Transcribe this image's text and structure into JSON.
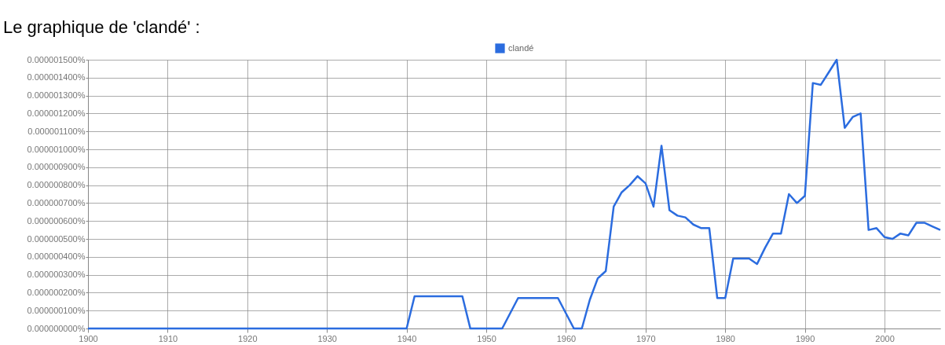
{
  "chart_data": {
    "type": "line",
    "title": "Le graphique de 'clandé' :",
    "x": [
      1900,
      1940,
      1941,
      1947,
      1948,
      1952,
      1954,
      1959,
      1961,
      1962,
      1963,
      1964,
      1965,
      1966,
      1967,
      1968,
      1969,
      1970,
      1971,
      1972,
      1973,
      1974,
      1975,
      1976,
      1977,
      1978,
      1979,
      1980,
      1981,
      1982,
      1983,
      1984,
      1985,
      1986,
      1987,
      1988,
      1989,
      1990,
      1991,
      1992,
      1993,
      1994,
      1995,
      1996,
      1997,
      1998,
      1999,
      2000,
      2001,
      2002,
      2003,
      2004,
      2005,
      2006,
      2007
    ],
    "series": [
      {
        "name": "clandé",
        "color": "#2b6cdf",
        "values": [
          0,
          0,
          1.8e-07,
          1.8e-07,
          0,
          0,
          1.7e-07,
          1.7e-07,
          0,
          0,
          1.6e-07,
          2.8e-07,
          3.2e-07,
          6.8e-07,
          7.6e-07,
          8e-07,
          8.5e-07,
          8.1e-07,
          6.8e-07,
          1.02e-06,
          6.6e-07,
          6.3e-07,
          6.2e-07,
          5.8e-07,
          5.6e-07,
          5.6e-07,
          1.7e-07,
          1.7e-07,
          3.9e-07,
          3.9e-07,
          3.9e-07,
          3.6e-07,
          4.5e-07,
          5.3e-07,
          5.3e-07,
          7.5e-07,
          7e-07,
          7.4e-07,
          1.37e-06,
          1.36e-06,
          1.43e-06,
          1.5e-06,
          1.12e-06,
          1.18e-06,
          1.2e-06,
          5.5e-07,
          5.6e-07,
          5.1e-07,
          5e-07,
          5.3e-07,
          5.2e-07,
          5.9e-07,
          5.9e-07,
          5.7e-07,
          5.5e-07
        ]
      }
    ],
    "xlim": [
      1900,
      2007
    ],
    "xticks": [
      1900,
      1910,
      1920,
      1930,
      1940,
      1950,
      1960,
      1970,
      1980,
      1990,
      2000
    ],
    "ylim": [
      0,
      1.5e-06
    ],
    "yticks": [
      {
        "value": 0,
        "label": "0.000000000%"
      },
      {
        "value": 1e-07,
        "label": "0.000000100%"
      },
      {
        "value": 2e-07,
        "label": "0.000000200%"
      },
      {
        "value": 3e-07,
        "label": "0.000000300%"
      },
      {
        "value": 4e-07,
        "label": "0.000000400%"
      },
      {
        "value": 5e-07,
        "label": "0.000000500%"
      },
      {
        "value": 6e-07,
        "label": "0.000000600%"
      },
      {
        "value": 7e-07,
        "label": "0.000000700%"
      },
      {
        "value": 8e-07,
        "label": "0.000000800%"
      },
      {
        "value": 9e-07,
        "label": "0.000000900%"
      },
      {
        "value": 1e-06,
        "label": "0.000001000%"
      },
      {
        "value": 1.1e-06,
        "label": "0.000001100%"
      },
      {
        "value": 1.2e-06,
        "label": "0.000001200%"
      },
      {
        "value": 1.3e-06,
        "label": "0.000001300%"
      },
      {
        "value": 1.4e-06,
        "label": "0.000001400%"
      },
      {
        "value": 1.5e-06,
        "label": "0.000001500%"
      }
    ],
    "grid": true,
    "legend": "top"
  }
}
